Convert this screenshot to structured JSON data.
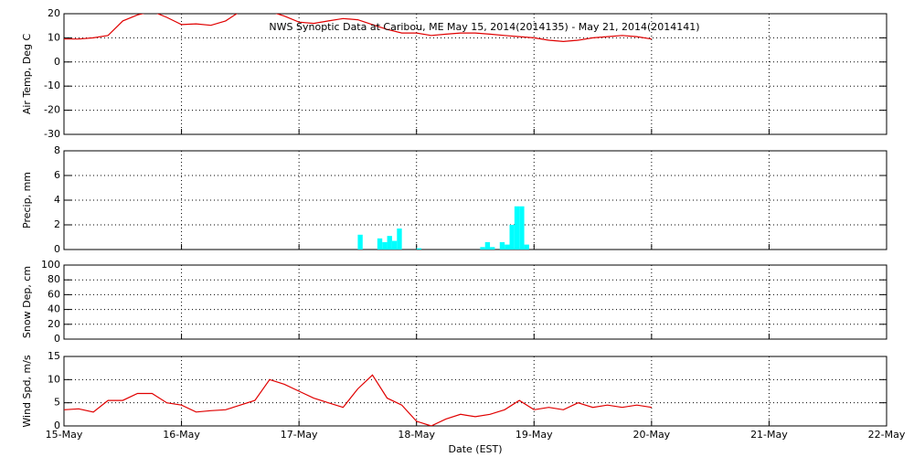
{
  "chart_data": [
    {
      "type": "line",
      "title": "NWS Synoptic Data at Caribou, ME   May 15, 2014(2014135) - May 21, 2014(2014141)",
      "ylabel": "Air Temp, Deg C",
      "ylim": [
        -30,
        20
      ],
      "yticks": [
        -30,
        -20,
        -10,
        0,
        10,
        20
      ],
      "grid": true,
      "xlim": [
        0,
        168
      ],
      "xticks": [
        {
          "value": 0,
          "label": "15-May"
        },
        {
          "value": 24,
          "label": "16-May"
        },
        {
          "value": 48,
          "label": "17-May"
        },
        {
          "value": 72,
          "label": "18-May"
        },
        {
          "value": 96,
          "label": "19-May"
        },
        {
          "value": 120,
          "label": "20-May"
        },
        {
          "value": 144,
          "label": "21-May"
        },
        {
          "value": 168,
          "label": "22-May"
        }
      ],
      "x": [
        0,
        3,
        6,
        9,
        12,
        15,
        18,
        21,
        24,
        27,
        30,
        33,
        36,
        39,
        42,
        45,
        48,
        51,
        54,
        57,
        60,
        63,
        66,
        69,
        72,
        75,
        78,
        81,
        84,
        87,
        90,
        93,
        96,
        99,
        102,
        105,
        108,
        111,
        114,
        117,
        120
      ],
      "series": [
        {
          "color": "#e00000",
          "values": [
            9.5,
            9.5,
            10,
            11,
            17,
            19.5,
            21,
            18.5,
            15.5,
            15.8,
            15.2,
            17,
            21,
            22,
            21,
            19,
            16.5,
            16,
            17,
            18,
            17.5,
            15.5,
            13.5,
            12,
            12,
            11,
            11.5,
            12,
            12,
            11.5,
            11,
            10.5,
            10,
            9,
            8.5,
            9,
            10,
            10.5,
            11,
            10.5,
            9.5
          ]
        }
      ]
    },
    {
      "type": "bar",
      "ylabel": "Precip, mm",
      "ylim": [
        0,
        8
      ],
      "yticks": [
        0,
        2,
        4,
        6,
        8
      ],
      "grid": true,
      "xlim": [
        0,
        168
      ],
      "xticks": [
        {
          "value": 0,
          "label": "15-May"
        },
        {
          "value": 24,
          "label": "16-May"
        },
        {
          "value": 48,
          "label": "17-May"
        },
        {
          "value": 72,
          "label": "18-May"
        },
        {
          "value": 96,
          "label": "19-May"
        },
        {
          "value": 120,
          "label": "20-May"
        },
        {
          "value": 144,
          "label": "21-May"
        },
        {
          "value": 168,
          "label": "22-May"
        }
      ],
      "x": [
        60,
        64,
        65,
        66,
        67,
        68,
        72,
        85,
        86,
        87,
        89,
        90,
        91,
        92,
        93,
        94
      ],
      "series": [
        {
          "color": "#00ffff",
          "values": [
            1.2,
            0.9,
            0.6,
            1.1,
            0.7,
            1.7,
            0.1,
            0.2,
            0.6,
            0.2,
            0.6,
            0.4,
            2.0,
            3.5,
            3.5,
            0.4
          ]
        }
      ]
    },
    {
      "type": "line",
      "ylabel": "Snow Dep, cm",
      "ylim": [
        0,
        100
      ],
      "yticks": [
        0,
        20,
        40,
        60,
        80,
        100
      ],
      "grid": true,
      "xlim": [
        0,
        168
      ],
      "xticks": [
        {
          "value": 0,
          "label": "15-May"
        },
        {
          "value": 24,
          "label": "16-May"
        },
        {
          "value": 48,
          "label": "17-May"
        },
        {
          "value": 72,
          "label": "18-May"
        },
        {
          "value": 96,
          "label": "19-May"
        },
        {
          "value": 120,
          "label": "20-May"
        },
        {
          "value": 144,
          "label": "21-May"
        },
        {
          "value": 168,
          "label": "22-May"
        }
      ],
      "series": []
    },
    {
      "type": "line",
      "ylabel": "Wind Spd, m/s",
      "xlabel": "Date (EST)",
      "ylim": [
        0,
        15
      ],
      "yticks": [
        0,
        5,
        10,
        15
      ],
      "grid": true,
      "xlim": [
        0,
        168
      ],
      "xticks": [
        {
          "value": 0,
          "label": "15-May"
        },
        {
          "value": 24,
          "label": "16-May"
        },
        {
          "value": 48,
          "label": "17-May"
        },
        {
          "value": 72,
          "label": "18-May"
        },
        {
          "value": 96,
          "label": "19-May"
        },
        {
          "value": 120,
          "label": "20-May"
        },
        {
          "value": 144,
          "label": "21-May"
        },
        {
          "value": 168,
          "label": "22-May"
        }
      ],
      "x": [
        0,
        3,
        6,
        9,
        12,
        15,
        18,
        21,
        24,
        27,
        30,
        33,
        36,
        39,
        42,
        45,
        48,
        51,
        54,
        57,
        60,
        63,
        66,
        69,
        72,
        75,
        78,
        81,
        84,
        87,
        90,
        93,
        96,
        99,
        102,
        105,
        108,
        111,
        114,
        117,
        120
      ],
      "series": [
        {
          "color": "#e00000",
          "values": [
            3.5,
            3.7,
            3,
            5.5,
            5.5,
            7,
            7,
            5,
            4.5,
            3,
            3.3,
            3.5,
            4.5,
            5.5,
            10,
            9,
            7.5,
            6,
            5,
            4,
            8,
            11,
            6,
            4.5,
            1,
            0,
            1.5,
            2.5,
            2,
            2.5,
            3.5,
            5.5,
            3.5,
            4,
            3.5,
            5,
            4,
            4.5,
            4,
            4.5,
            4
          ]
        }
      ]
    }
  ]
}
